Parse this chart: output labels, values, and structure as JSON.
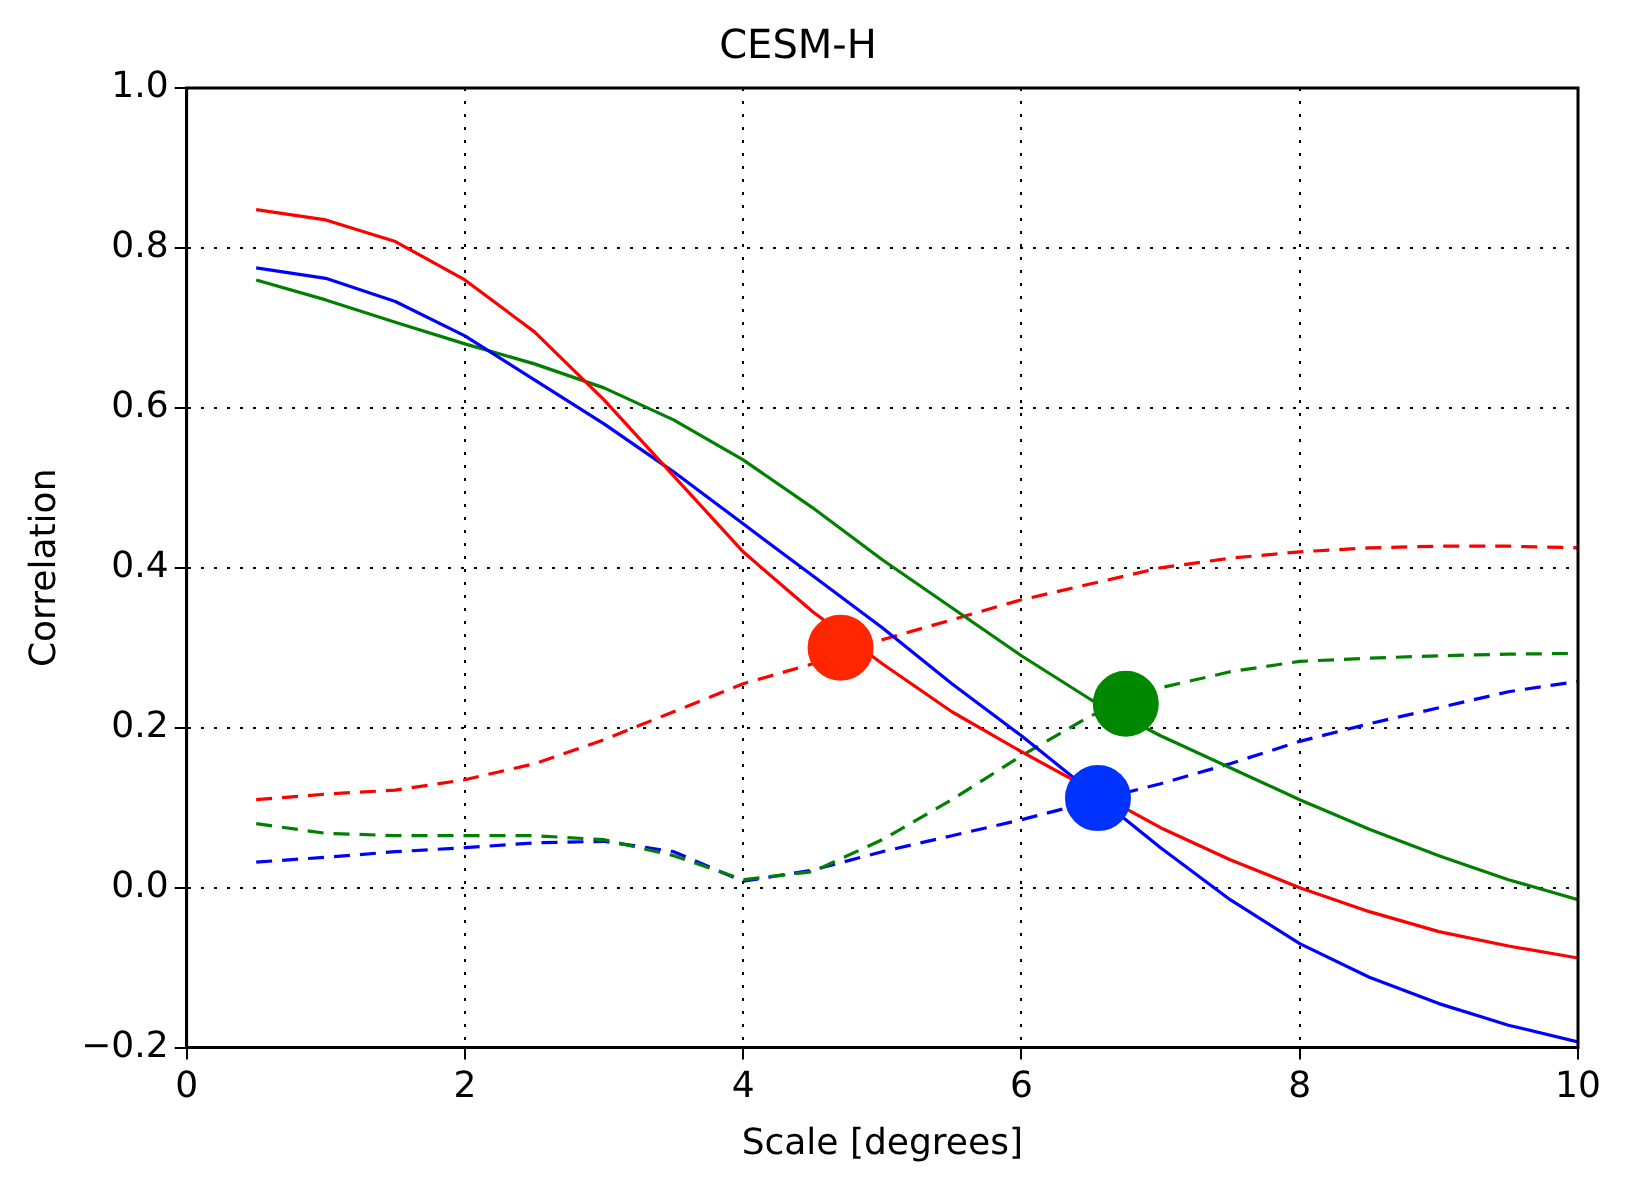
{
  "chart_data": {
    "type": "line",
    "title": "CESM-H",
    "xlabel": "Scale [degrees]",
    "ylabel": "Correlation",
    "x": [
      0.5,
      1,
      1.5,
      2,
      2.5,
      3,
      3.5,
      4,
      4.5,
      5,
      5.5,
      6,
      6.5,
      7,
      7.5,
      8,
      8.5,
      9,
      9.5,
      10
    ],
    "xlim": [
      0,
      10
    ],
    "xticks": [
      0,
      2,
      4,
      6,
      8,
      10
    ],
    "ylim": [
      -0.2,
      1.0
    ],
    "yticks": [
      {
        "value": -0.2,
        "label": "−0.2"
      },
      {
        "value": 0,
        "label": "0.0"
      },
      0.2,
      0.4,
      0.6,
      0.8,
      {
        "value": 1,
        "label": "1.0"
      }
    ],
    "grid": true,
    "legend": false,
    "series": [
      {
        "type": "line",
        "color": "#ff0000",
        "line_style": "solid",
        "values": [
          0.848,
          0.835,
          0.808,
          0.76,
          0.695,
          0.61,
          0.515,
          0.42,
          0.345,
          0.28,
          0.22,
          0.17,
          null,
          0.075,
          0.035,
          0.0,
          -0.03,
          -0.055,
          -0.073,
          -0.088
        ]
      },
      {
        "type": "line",
        "color": "#0000ff",
        "line_style": "solid",
        "values": [
          0.775,
          0.762,
          0.733,
          0.69,
          0.635,
          0.58,
          0.52,
          0.455,
          0.39,
          0.325,
          0.255,
          0.19,
          null,
          0.05,
          -0.015,
          -0.07,
          -0.112,
          -0.145,
          -0.172,
          -0.193
        ]
      },
      {
        "type": "line",
        "color": "#008000",
        "line_style": "solid",
        "values": [
          0.76,
          0.735,
          0.707,
          0.68,
          0.655,
          0.625,
          0.585,
          0.535,
          0.475,
          0.41,
          0.35,
          0.29,
          0.235,
          0.19,
          0.15,
          0.11,
          0.073,
          0.04,
          0.01,
          -0.015
        ]
      },
      {
        "type": "line",
        "color": "#ff0000",
        "line_style": "dashed",
        "values": [
          0.11,
          0.117,
          0.122,
          0.135,
          0.155,
          0.185,
          0.22,
          0.255,
          0.28,
          0.31,
          0.335,
          0.36,
          0.38,
          0.4,
          0.412,
          0.42,
          0.425,
          0.427,
          0.427,
          0.425
        ]
      },
      {
        "type": "line",
        "color": "#008000",
        "line_style": "dashed",
        "values": [
          0.08,
          0.068,
          0.065,
          0.065,
          0.065,
          0.06,
          0.04,
          0.01,
          0.02,
          0.06,
          0.11,
          0.165,
          0.215,
          0.25,
          0.27,
          0.283,
          0.287,
          0.29,
          0.292,
          0.293
        ]
      },
      {
        "type": "line",
        "color": "#0000ff",
        "line_style": "dashed",
        "values": [
          0.032,
          0.038,
          0.045,
          0.05,
          0.056,
          0.058,
          0.045,
          0.008,
          0.022,
          0.045,
          0.065,
          0.085,
          null,
          0.13,
          0.155,
          0.183,
          0.205,
          0.225,
          0.245,
          0.258
        ]
      },
      {
        "type": "scatter",
        "marker": "circle",
        "color": "#ff2600",
        "x": [
          4.7
        ],
        "values": [
          0.3
        ]
      },
      {
        "type": "scatter",
        "marker": "circle",
        "color": "#008800",
        "x": [
          6.75
        ],
        "values": [
          0.23
        ]
      },
      {
        "type": "scatter",
        "marker": "circle",
        "color": "#0033ff",
        "x": [
          6.55
        ],
        "values": [
          0.112
        ]
      }
    ]
  }
}
